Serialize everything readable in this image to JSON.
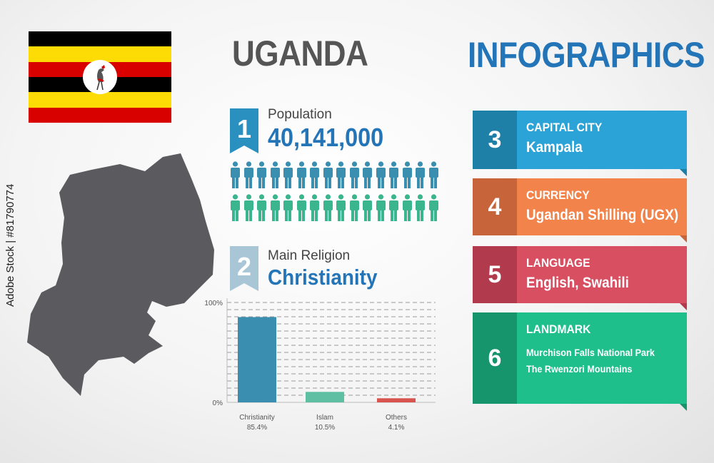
{
  "country": "UGANDA",
  "heading": "INFOGRAPHICS",
  "flag": {
    "colors": [
      "#000000",
      "#FCDC04",
      "#D90000",
      "#000000",
      "#FCDC04",
      "#D90000"
    ]
  },
  "population": {
    "number": "1",
    "label": "Population",
    "value": "40,141,000",
    "icon": "person-icon",
    "colors": {
      "top": "#3a8fb0",
      "bottom": "#3bb58e"
    }
  },
  "religion": {
    "number": "2",
    "label": "Main Religion",
    "value": "Christianity"
  },
  "chart_data": {
    "type": "bar",
    "categories": [
      "Christianity",
      "Islam",
      "Others"
    ],
    "values": [
      85.4,
      10.5,
      4.1
    ],
    "value_labels": [
      "85.4%",
      "10.5%",
      "4.1%"
    ],
    "y_ticks": [
      "100%",
      "0%"
    ],
    "ylim": [
      0,
      100
    ],
    "colors": [
      "#3a8fb0",
      "#5fbfa2",
      "#d9534f"
    ],
    "grid": true
  },
  "cards": [
    {
      "number": "3",
      "heading": "CAPITAL CITY",
      "lines": [
        "Kampala"
      ],
      "color": "#2ba3d6",
      "dark": "#1e7fa7"
    },
    {
      "number": "4",
      "heading": "CURRENCY",
      "lines": [
        "Ugandan Shilling (UGX)"
      ],
      "color": "#f2834a",
      "dark": "#c8643a"
    },
    {
      "number": "5",
      "heading": "LANGUAGE",
      "lines": [
        "English, Swahili"
      ],
      "color": "#d84f62",
      "dark": "#b23a4d"
    },
    {
      "number": "6",
      "heading": "LANDMARK",
      "lines": [
        "Murchison Falls National Park",
        "The Rwenzori Mountains"
      ],
      "color": "#1fbf8c",
      "dark": "#16946c"
    }
  ],
  "stock_id": "Adobe Stock | #81790774"
}
